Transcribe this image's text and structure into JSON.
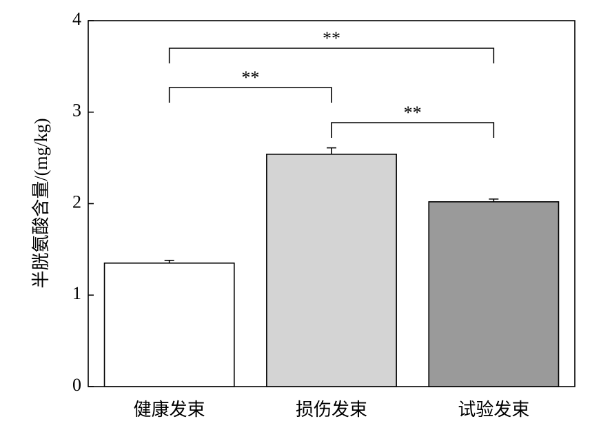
{
  "chart_data": {
    "type": "bar",
    "ylabel": "半胱氨酸含量/(mg/kg)",
    "categories": [
      "健康发束",
      "损伤发束",
      "试验发束"
    ],
    "values": [
      1.35,
      2.54,
      2.02
    ],
    "errors": [
      0.03,
      0.07,
      0.03
    ],
    "colors": [
      "#ffffff",
      "#d4d4d4",
      "#9a9a9a"
    ],
    "ylim": [
      0,
      4
    ],
    "yticks": [
      0,
      1,
      2,
      3,
      4
    ],
    "annotations": [
      {
        "text": "**",
        "pair": [
          0,
          2
        ]
      },
      {
        "text": "**",
        "pair": [
          0,
          1
        ]
      },
      {
        "text": "**",
        "pair": [
          1,
          2
        ]
      }
    ]
  }
}
